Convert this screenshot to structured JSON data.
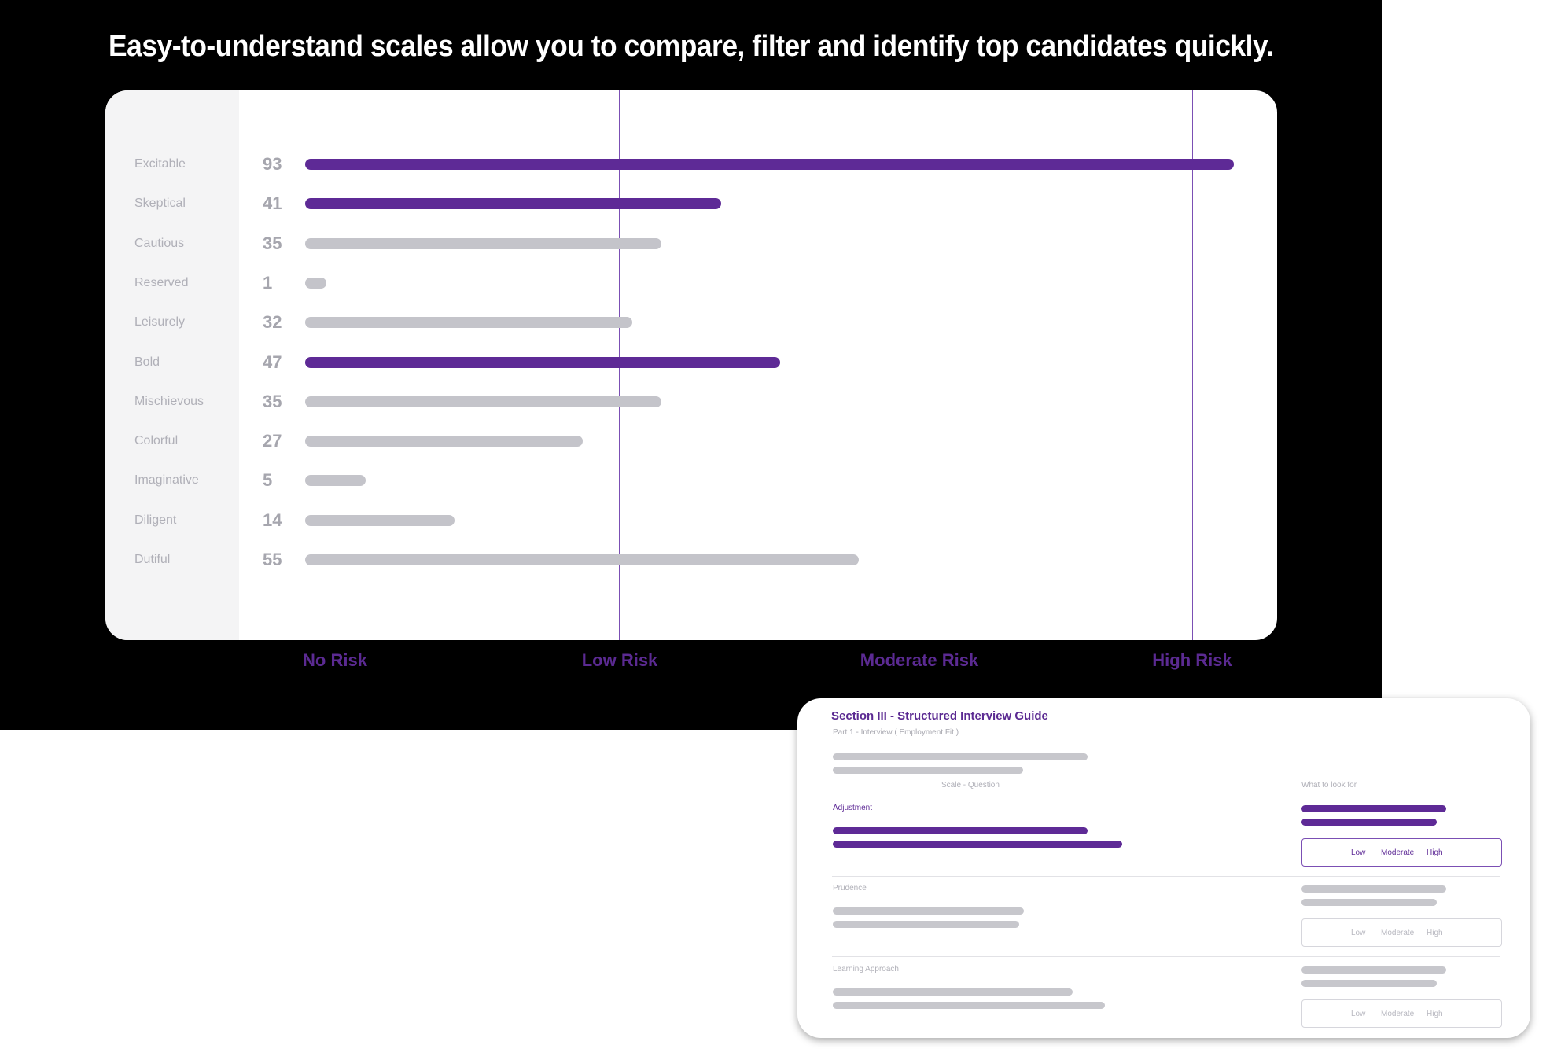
{
  "headline": "Easy-to-understand scales allow you to compare, filter and identify top candidates quickly.",
  "colors": {
    "highlight": "#5e2a96",
    "muted": "#c4c4ca",
    "risk_label": "#5b2a92"
  },
  "chart_data": {
    "type": "bar",
    "orientation": "horizontal",
    "categories": [
      "Excitable",
      "Skeptical",
      "Cautious",
      "Reserved",
      "Leisurely",
      "Bold",
      "Mischievous",
      "Colorful",
      "Imaginative",
      "Diligent",
      "Dutiful"
    ],
    "values": [
      93,
      41,
      35,
      1,
      32,
      47,
      35,
      27,
      5,
      14,
      55
    ],
    "highlighted": [
      true,
      true,
      false,
      false,
      false,
      true,
      false,
      false,
      false,
      false,
      false
    ],
    "risk_levels": [
      "No Risk",
      "Low Risk",
      "Moderate Risk",
      "High Risk"
    ],
    "grid": "vertical at risk thresholds"
  },
  "guide": {
    "title": "Section III - Structured Interview Guide",
    "subtitle": "Part 1 - Interview ( Employment Fit )",
    "col_left": "Scale - Question",
    "col_right": "What to look for",
    "sections": [
      {
        "name": "Adjustment",
        "active": true,
        "options": [
          "Low",
          "Moderate",
          "High"
        ]
      },
      {
        "name": "Prudence",
        "active": false,
        "options": [
          "Low",
          "Moderate",
          "High"
        ]
      },
      {
        "name": "Learning Approach",
        "active": false,
        "options": [
          "Low",
          "Moderate",
          "High"
        ]
      }
    ]
  }
}
